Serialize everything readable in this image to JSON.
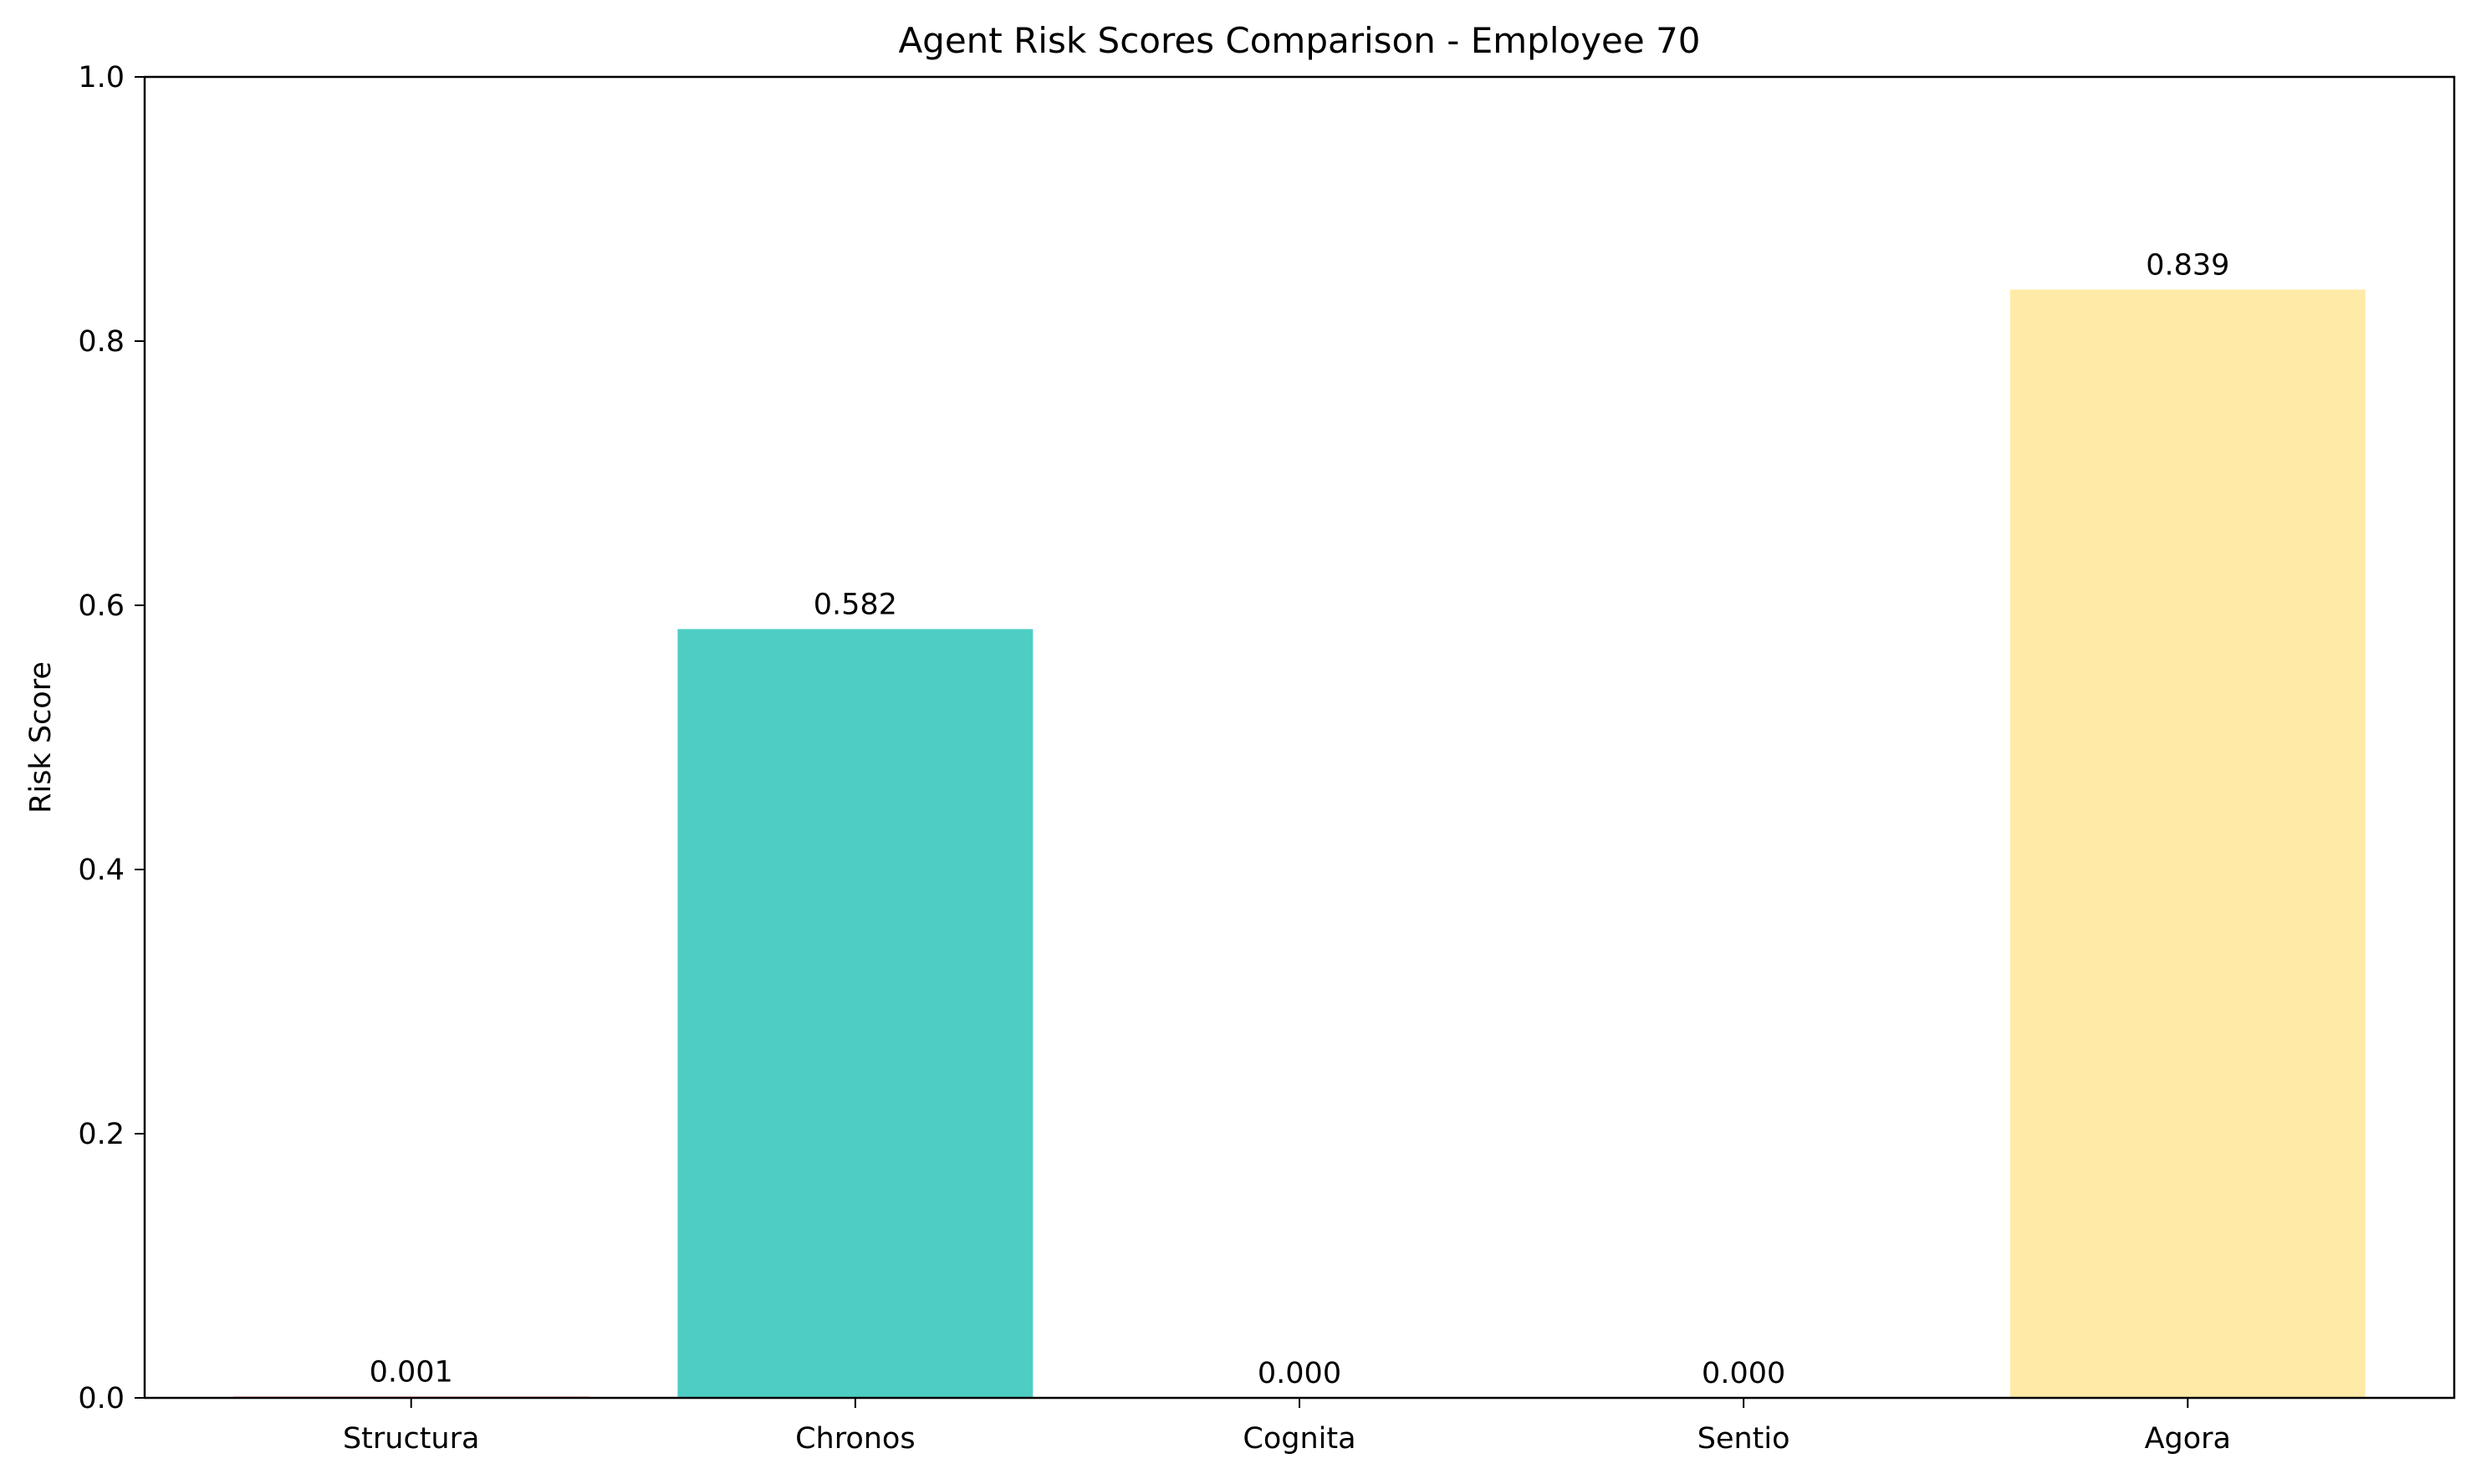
{
  "chart_data": {
    "type": "bar",
    "title": "Agent Risk Scores Comparison - Employee 70",
    "xlabel": "",
    "ylabel": "Risk Score",
    "categories": [
      "Structura",
      "Chronos",
      "Cognita",
      "Sentio",
      "Agora"
    ],
    "values": [
      0.001,
      0.582,
      0.0,
      0.0,
      0.839
    ],
    "value_labels": [
      "0.001",
      "0.582",
      "0.000",
      "0.000",
      "0.839"
    ],
    "bar_colors": [
      "#ff6b6b",
      "#4ecdc4",
      "#45b7d1",
      "#96ceb4",
      "#ffeaa7"
    ],
    "ylim": [
      0,
      1
    ],
    "yticks": [
      0.0,
      0.2,
      0.4,
      0.6,
      0.8,
      1.0
    ],
    "ytick_labels": [
      "0.0",
      "0.2",
      "0.4",
      "0.6",
      "0.8",
      "1.0"
    ],
    "grid": false,
    "legend": "none"
  }
}
